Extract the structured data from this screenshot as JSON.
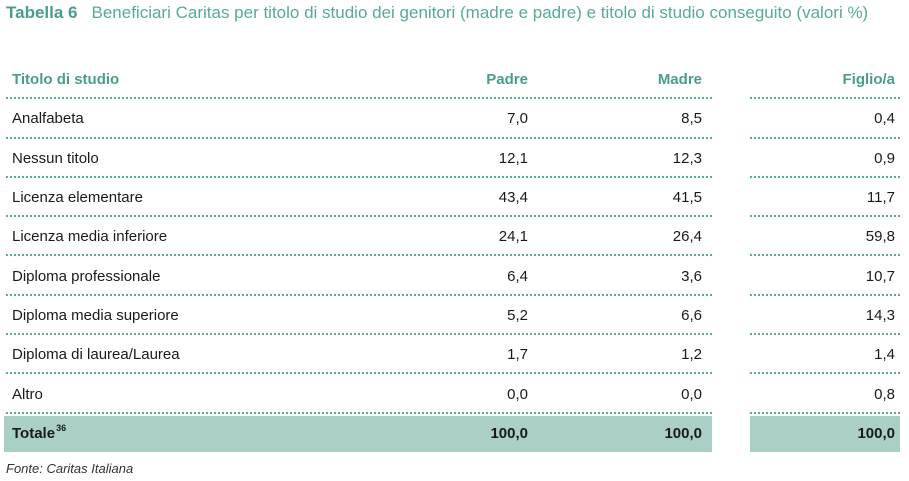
{
  "title": {
    "label": "Tabella 6",
    "text": "Beneficiari Caritas per titolo di studio dei genitori (madre e padre) e titolo di studio conseguito (valori %)"
  },
  "headers": {
    "titolo": "Titolo di studio",
    "padre": "Padre",
    "madre": "Madre",
    "figlio": "Figlio/a"
  },
  "rows": [
    {
      "titolo": "Analfabeta",
      "padre": "7,0",
      "madre": "8,5",
      "figlio": "0,4"
    },
    {
      "titolo": "Nessun titolo",
      "padre": "12,1",
      "madre": "12,3",
      "figlio": "0,9"
    },
    {
      "titolo": "Licenza elementare",
      "padre": "43,4",
      "madre": "41,5",
      "figlio": "11,7"
    },
    {
      "titolo": "Licenza media inferiore",
      "padre": "24,1",
      "madre": "26,4",
      "figlio": "59,8"
    },
    {
      "titolo": "Diploma professionale",
      "padre": "6,4",
      "madre": "3,6",
      "figlio": "10,7"
    },
    {
      "titolo": "Diploma media superiore",
      "padre": "5,2",
      "madre": "6,6",
      "figlio": "14,3"
    },
    {
      "titolo": "Diploma di laurea/Laurea",
      "padre": "1,7",
      "madre": "1,2",
      "figlio": "1,4"
    },
    {
      "titolo": "Altro",
      "padre": "0,0",
      "madre": "0,0",
      "figlio": "0,8"
    }
  ],
  "total": {
    "titolo": "Totale",
    "note": "36",
    "padre": "100,0",
    "madre": "100,0",
    "figlio": "100,0"
  },
  "source": "Fonte: Caritas Italiana",
  "colors": {
    "accent": "#4a9d8e",
    "total_fill": "#a9cfc7"
  }
}
